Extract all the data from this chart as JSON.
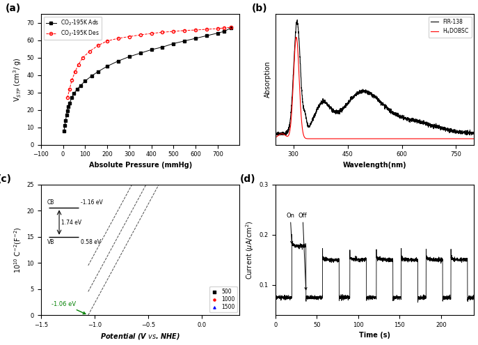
{
  "panel_a": {
    "label": "(a)",
    "xlabel": "Absolute Pressure (mmHg)",
    "ylabel": "V$_{STP}$ (cm$^3$/ g)",
    "xlim": [
      -100,
      800
    ],
    "ylim": [
      0,
      75
    ],
    "xticks": [
      -100,
      0,
      100,
      200,
      300,
      400,
      500,
      600,
      700
    ],
    "yticks": [
      0,
      10,
      20,
      30,
      40,
      50,
      60,
      70
    ],
    "ads_x": [
      5,
      8,
      12,
      16,
      20,
      25,
      30,
      40,
      50,
      65,
      80,
      100,
      130,
      160,
      200,
      250,
      300,
      350,
      400,
      450,
      500,
      550,
      600,
      650,
      700,
      730,
      760
    ],
    "ads_y": [
      8,
      11,
      14,
      17,
      19.5,
      22,
      24,
      27,
      29.5,
      32,
      34,
      36.5,
      39.5,
      42,
      45,
      48,
      50.5,
      52.5,
      54.5,
      56,
      58,
      59.5,
      61,
      62.5,
      64,
      65,
      67
    ],
    "des_x": [
      20,
      30,
      40,
      55,
      70,
      90,
      120,
      160,
      200,
      250,
      300,
      350,
      400,
      450,
      500,
      550,
      600,
      650,
      700,
      730,
      760
    ],
    "des_y": [
      27,
      32,
      37,
      42,
      46,
      50,
      53.5,
      57,
      59.5,
      61,
      62,
      63,
      63.8,
      64.5,
      65,
      65.5,
      65.8,
      66.2,
      66.6,
      67,
      67.3
    ],
    "ads_label": "CO$_2$-195K Ads",
    "des_label": "CO$_2$-195K Des"
  },
  "panel_b": {
    "label": "(b)",
    "xlabel": "Wavelength(nm)",
    "ylabel": "Absorption",
    "xlim": [
      250,
      800
    ],
    "xticks": [
      300,
      450,
      600,
      750
    ],
    "legend1": "FIR-138",
    "legend2": "H$_4$DOBSC"
  },
  "panel_c": {
    "label": "(c)",
    "xlabel": "Potential (V $vs$. NHE)",
    "ylabel": "10$^{10}$ C$^{-2}$(F$^{-2}$)",
    "xlim": [
      -1.5,
      0.35
    ],
    "ylim": [
      0,
      25
    ],
    "xticks": [
      -1.5,
      -1.0,
      -0.5,
      0.0
    ],
    "yticks": [
      0,
      5,
      10,
      15,
      20,
      25
    ],
    "flatband": -1.06,
    "flatband_label": "-1.06 eV",
    "cb_label": "CB",
    "cb_val": "-1.16 eV",
    "vb_label": "VB",
    "vb_val": "0.58 eV",
    "gap_label": "1.74 eV"
  },
  "panel_d": {
    "label": "(d)",
    "xlabel": "Time (s)",
    "ylabel": "Current ($\\mu$A/cm$^2$)",
    "xlim": [
      0,
      240
    ],
    "ylim": [
      0.04,
      0.3
    ],
    "yticks": [
      0.1,
      0.2,
      0.3
    ],
    "ytick_labels": [
      "0.1",
      "0.2",
      "0.3"
    ],
    "xticks": [
      0,
      50,
      100,
      150,
      200
    ],
    "on_label": "On",
    "off_label": "Off",
    "baseline": 0.075,
    "on_level_1": 0.182,
    "on_level_rest": 0.155
  }
}
